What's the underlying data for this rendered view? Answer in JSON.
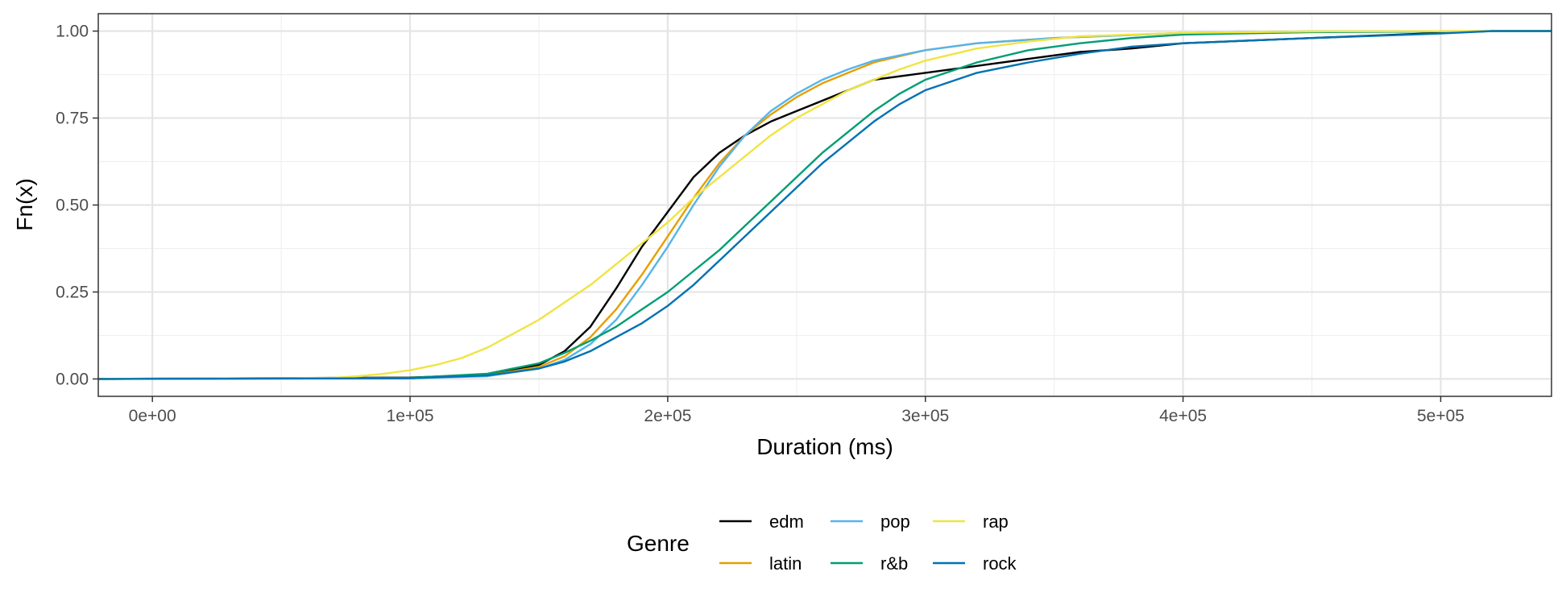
{
  "chart_data": {
    "type": "line",
    "title": "",
    "xlabel": "Duration (ms)",
    "ylabel": "Fn(x)",
    "xlim": [
      -21000,
      543000
    ],
    "ylim": [
      -0.05,
      1.05
    ],
    "x_ticks": [
      0,
      100000,
      200000,
      300000,
      400000,
      500000
    ],
    "x_tick_labels": [
      "0e+00",
      "1e+05",
      "2e+05",
      "3e+05",
      "4e+05",
      "5e+05"
    ],
    "y_ticks": [
      0,
      0.25,
      0.5,
      0.75,
      1.0
    ],
    "y_tick_labels": [
      "0.00",
      "0.25",
      "0.50",
      "0.75",
      "1.00"
    ],
    "grid": true,
    "legend": {
      "title": "Genre",
      "placement": "bottom"
    },
    "series": [
      {
        "name": "edm",
        "color": "#000000",
        "points": [
          [
            -21000,
            0
          ],
          [
            100000,
            0.004
          ],
          [
            130000,
            0.012
          ],
          [
            150000,
            0.04
          ],
          [
            160000,
            0.08
          ],
          [
            170000,
            0.15
          ],
          [
            180000,
            0.26
          ],
          [
            190000,
            0.38
          ],
          [
            200000,
            0.48
          ],
          [
            210000,
            0.58
          ],
          [
            220000,
            0.65
          ],
          [
            230000,
            0.7
          ],
          [
            240000,
            0.74
          ],
          [
            250000,
            0.77
          ],
          [
            260000,
            0.8
          ],
          [
            270000,
            0.83
          ],
          [
            280000,
            0.86
          ],
          [
            300000,
            0.88
          ],
          [
            320000,
            0.9
          ],
          [
            340000,
            0.92
          ],
          [
            360000,
            0.94
          ],
          [
            380000,
            0.95
          ],
          [
            400000,
            0.965
          ],
          [
            450000,
            0.98
          ],
          [
            500000,
            0.995
          ],
          [
            520000,
            1.0
          ],
          [
            543000,
            1.0
          ]
        ]
      },
      {
        "name": "latin",
        "color": "#E69F00",
        "points": [
          [
            -21000,
            0
          ],
          [
            100000,
            0.002
          ],
          [
            130000,
            0.01
          ],
          [
            150000,
            0.035
          ],
          [
            160000,
            0.065
          ],
          [
            170000,
            0.12
          ],
          [
            180000,
            0.2
          ],
          [
            190000,
            0.3
          ],
          [
            200000,
            0.41
          ],
          [
            210000,
            0.52
          ],
          [
            220000,
            0.62
          ],
          [
            230000,
            0.7
          ],
          [
            240000,
            0.76
          ],
          [
            250000,
            0.81
          ],
          [
            260000,
            0.85
          ],
          [
            270000,
            0.88
          ],
          [
            280000,
            0.91
          ],
          [
            300000,
            0.945
          ],
          [
            320000,
            0.965
          ],
          [
            350000,
            0.98
          ],
          [
            400000,
            0.995
          ],
          [
            450000,
            0.999
          ],
          [
            520000,
            1.0
          ],
          [
            543000,
            1.0
          ]
        ]
      },
      {
        "name": "pop",
        "color": "#56B4E9",
        "points": [
          [
            -21000,
            0
          ],
          [
            100000,
            0.002
          ],
          [
            130000,
            0.008
          ],
          [
            150000,
            0.03
          ],
          [
            160000,
            0.055
          ],
          [
            170000,
            0.1
          ],
          [
            180000,
            0.17
          ],
          [
            190000,
            0.27
          ],
          [
            200000,
            0.38
          ],
          [
            210000,
            0.5
          ],
          [
            220000,
            0.61
          ],
          [
            230000,
            0.7
          ],
          [
            240000,
            0.77
          ],
          [
            250000,
            0.82
          ],
          [
            260000,
            0.86
          ],
          [
            270000,
            0.89
          ],
          [
            280000,
            0.915
          ],
          [
            300000,
            0.945
          ],
          [
            320000,
            0.965
          ],
          [
            350000,
            0.98
          ],
          [
            400000,
            0.995
          ],
          [
            450000,
            0.999
          ],
          [
            520000,
            1.0
          ],
          [
            543000,
            1.0
          ]
        ]
      },
      {
        "name": "r&b",
        "color": "#009E73",
        "points": [
          [
            -21000,
            0
          ],
          [
            100000,
            0.003
          ],
          [
            130000,
            0.015
          ],
          [
            150000,
            0.045
          ],
          [
            160000,
            0.075
          ],
          [
            170000,
            0.11
          ],
          [
            180000,
            0.15
          ],
          [
            190000,
            0.2
          ],
          [
            200000,
            0.25
          ],
          [
            210000,
            0.31
          ],
          [
            220000,
            0.37
          ],
          [
            230000,
            0.44
          ],
          [
            240000,
            0.51
          ],
          [
            250000,
            0.58
          ],
          [
            260000,
            0.65
          ],
          [
            270000,
            0.71
          ],
          [
            280000,
            0.77
          ],
          [
            290000,
            0.82
          ],
          [
            300000,
            0.86
          ],
          [
            320000,
            0.91
          ],
          [
            340000,
            0.945
          ],
          [
            360000,
            0.965
          ],
          [
            380000,
            0.98
          ],
          [
            400000,
            0.99
          ],
          [
            450000,
            0.997
          ],
          [
            500000,
            0.999
          ],
          [
            520000,
            1.0
          ],
          [
            543000,
            1.0
          ]
        ]
      },
      {
        "name": "rap",
        "color": "#F0E442",
        "points": [
          [
            -21000,
            0
          ],
          [
            70000,
            0.003
          ],
          [
            80000,
            0.008
          ],
          [
            90000,
            0.015
          ],
          [
            100000,
            0.025
          ],
          [
            110000,
            0.04
          ],
          [
            120000,
            0.06
          ],
          [
            130000,
            0.09
          ],
          [
            140000,
            0.13
          ],
          [
            150000,
            0.17
          ],
          [
            160000,
            0.22
          ],
          [
            170000,
            0.27
          ],
          [
            180000,
            0.33
          ],
          [
            190000,
            0.39
          ],
          [
            200000,
            0.45
          ],
          [
            210000,
            0.52
          ],
          [
            220000,
            0.58
          ],
          [
            230000,
            0.64
          ],
          [
            240000,
            0.7
          ],
          [
            250000,
            0.75
          ],
          [
            260000,
            0.79
          ],
          [
            270000,
            0.83
          ],
          [
            280000,
            0.86
          ],
          [
            290000,
            0.89
          ],
          [
            300000,
            0.915
          ],
          [
            320000,
            0.95
          ],
          [
            340000,
            0.97
          ],
          [
            360000,
            0.985
          ],
          [
            400000,
            0.995
          ],
          [
            450000,
            0.999
          ],
          [
            520000,
            1.0
          ],
          [
            543000,
            1.0
          ]
        ]
      },
      {
        "name": "rock",
        "color": "#0072B2",
        "points": [
          [
            -21000,
            0
          ],
          [
            100000,
            0.002
          ],
          [
            130000,
            0.01
          ],
          [
            150000,
            0.03
          ],
          [
            160000,
            0.05
          ],
          [
            170000,
            0.08
          ],
          [
            180000,
            0.12
          ],
          [
            190000,
            0.16
          ],
          [
            200000,
            0.21
          ],
          [
            210000,
            0.27
          ],
          [
            220000,
            0.34
          ],
          [
            230000,
            0.41
          ],
          [
            240000,
            0.48
          ],
          [
            250000,
            0.55
          ],
          [
            260000,
            0.62
          ],
          [
            270000,
            0.68
          ],
          [
            280000,
            0.74
          ],
          [
            290000,
            0.79
          ],
          [
            300000,
            0.83
          ],
          [
            320000,
            0.88
          ],
          [
            340000,
            0.91
          ],
          [
            360000,
            0.935
          ],
          [
            380000,
            0.955
          ],
          [
            400000,
            0.965
          ],
          [
            450000,
            0.98
          ],
          [
            500000,
            0.993
          ],
          [
            520000,
            1.0
          ],
          [
            543000,
            1.0
          ]
        ]
      }
    ]
  }
}
